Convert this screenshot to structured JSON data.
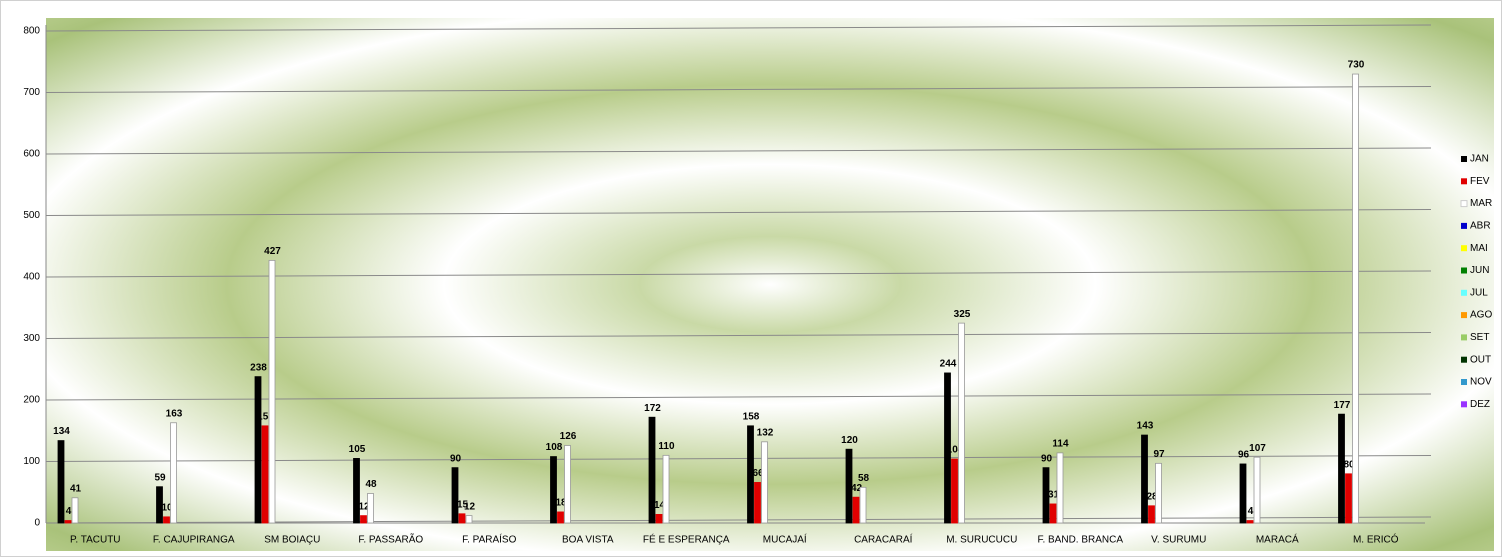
{
  "chart_data": {
    "type": "bar",
    "categories": [
      "P. TACUTU",
      "F. CAJUPIRANGA",
      "SM BOIAÇU",
      "F. PASSARÃO",
      "F. PARAÍSO",
      "BOA VISTA",
      "FÉ E ESPERANÇA",
      "MUCAJAÍ",
      "CARACARAÍ",
      "M. SURUCUCU",
      "F.  BAND. BRANCA",
      "V. SURUMU",
      "MARACÁ",
      "M. ERICÓ"
    ],
    "series": [
      {
        "name": "JAN",
        "color": "#000000",
        "values": [
          134,
          59,
          238,
          105,
          90,
          108,
          172,
          158,
          120,
          244,
          90,
          143,
          96,
          177
        ]
      },
      {
        "name": "FEV",
        "color": "#e00000",
        "values": [
          4,
          10,
          158,
          12,
          15,
          18,
          14,
          66,
          42,
          104,
          31,
          28,
          4,
          80
        ]
      },
      {
        "name": "MAR",
        "color": "#ffffff",
        "values": [
          41,
          163,
          427,
          48,
          12,
          126,
          110,
          132,
          58,
          325,
          114,
          97,
          107,
          730
        ]
      },
      {
        "name": "ABR",
        "color": "#0000cc",
        "values": [
          null,
          null,
          null,
          null,
          null,
          null,
          null,
          null,
          null,
          null,
          null,
          null,
          null,
          null
        ]
      },
      {
        "name": "MAI",
        "color": "#ffff00",
        "values": [
          null,
          null,
          null,
          null,
          null,
          null,
          null,
          null,
          null,
          null,
          null,
          null,
          null,
          null
        ]
      },
      {
        "name": "JUN",
        "color": "#008000",
        "values": [
          null,
          null,
          null,
          null,
          null,
          null,
          null,
          null,
          null,
          null,
          null,
          null,
          null,
          null
        ]
      },
      {
        "name": "JUL",
        "color": "#66ffff",
        "values": [
          null,
          null,
          null,
          null,
          null,
          null,
          null,
          null,
          null,
          null,
          null,
          null,
          null,
          null
        ]
      },
      {
        "name": "AGO",
        "color": "#ff9900",
        "values": [
          null,
          null,
          null,
          null,
          null,
          null,
          null,
          null,
          null,
          null,
          null,
          null,
          null,
          null
        ]
      },
      {
        "name": "SET",
        "color": "#99cc66",
        "values": [
          null,
          null,
          null,
          null,
          null,
          null,
          null,
          null,
          null,
          null,
          null,
          null,
          null,
          null
        ]
      },
      {
        "name": "OUT",
        "color": "#003300",
        "values": [
          null,
          null,
          null,
          null,
          null,
          null,
          null,
          null,
          null,
          null,
          null,
          null,
          null,
          null
        ]
      },
      {
        "name": "NOV",
        "color": "#3399cc",
        "values": [
          null,
          null,
          null,
          null,
          null,
          null,
          null,
          null,
          null,
          null,
          null,
          null,
          null,
          null
        ]
      },
      {
        "name": "DEZ",
        "color": "#9933ff",
        "values": [
          null,
          null,
          null,
          null,
          null,
          null,
          null,
          null,
          null,
          null,
          null,
          null,
          null,
          null
        ]
      }
    ],
    "ylim": [
      0,
      800
    ],
    "yticks": [
      0,
      100,
      200,
      300,
      400,
      500,
      600,
      700,
      800
    ],
    "grid": true,
    "legend": "right"
  }
}
